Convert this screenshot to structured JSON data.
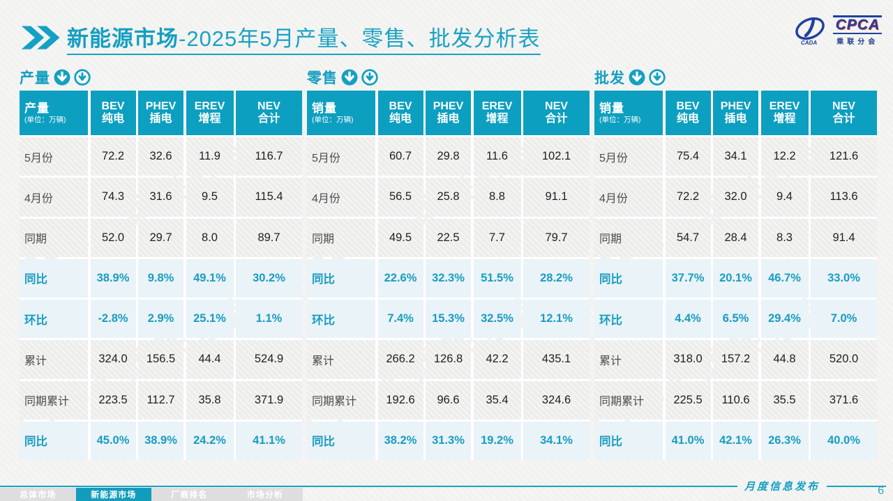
{
  "header": {
    "title_bold": "新能源市场",
    "title_rest": "-2025年5月产量、零售、批发分析表"
  },
  "logo": {
    "cpca": "CPCA",
    "sub": "乘联分会",
    "cada": "CADA"
  },
  "watermark": "CPCA 乘联分会",
  "tables": [
    {
      "section_label": "产量",
      "icon": "none",
      "first_header": "产量",
      "unit": "(单位：万辆)",
      "columns": [
        {
          "en": "BEV",
          "zh": "纯电"
        },
        {
          "en": "PHEV",
          "zh": "插电"
        },
        {
          "en": "EREV",
          "zh": "增程"
        },
        {
          "en": "NEV",
          "zh": "合计"
        }
      ],
      "rows": [
        {
          "label": "5月份",
          "type": "data",
          "values": [
            "72.2",
            "32.6",
            "11.9",
            "116.7"
          ]
        },
        {
          "label": "4月份",
          "type": "data",
          "values": [
            "74.3",
            "31.6",
            "9.5",
            "115.4"
          ]
        },
        {
          "label": "同期",
          "type": "data",
          "values": [
            "52.0",
            "29.7",
            "8.0",
            "89.7"
          ]
        },
        {
          "label": "同比",
          "type": "percent",
          "values": [
            "38.9%",
            "9.8%",
            "49.1%",
            "30.2%"
          ]
        },
        {
          "label": "环比",
          "type": "percent",
          "values": [
            "-2.8%",
            "2.9%",
            "25.1%",
            "1.1%"
          ]
        },
        {
          "label": "累计",
          "type": "data",
          "values": [
            "324.0",
            "156.5",
            "44.4",
            "524.9"
          ]
        },
        {
          "label": "同期累计",
          "type": "data",
          "values": [
            "223.5",
            "112.7",
            "35.8",
            "371.9"
          ]
        },
        {
          "label": "同比",
          "type": "percent",
          "values": [
            "45.0%",
            "38.9%",
            "24.2%",
            "41.1%"
          ]
        }
      ]
    },
    {
      "section_label": "零售",
      "icon": "filled-down",
      "first_header": "销量",
      "unit": "(单位：万辆)",
      "columns": [
        {
          "en": "BEV",
          "zh": "纯电"
        },
        {
          "en": "PHEV",
          "zh": "插电"
        },
        {
          "en": "EREV",
          "zh": "增程"
        },
        {
          "en": "NEV",
          "zh": "合计"
        }
      ],
      "rows": [
        {
          "label": "5月份",
          "type": "data",
          "values": [
            "60.7",
            "29.8",
            "11.6",
            "102.1"
          ]
        },
        {
          "label": "4月份",
          "type": "data",
          "values": [
            "56.5",
            "25.8",
            "8.8",
            "91.1"
          ]
        },
        {
          "label": "同期",
          "type": "data",
          "values": [
            "49.5",
            "22.5",
            "7.7",
            "79.7"
          ]
        },
        {
          "label": "同比",
          "type": "percent",
          "values": [
            "22.6%",
            "32.3%",
            "51.5%",
            "28.2%"
          ]
        },
        {
          "label": "环比",
          "type": "percent",
          "values": [
            "7.4%",
            "15.3%",
            "32.5%",
            "12.1%"
          ]
        },
        {
          "label": "累计",
          "type": "data",
          "values": [
            "266.2",
            "126.8",
            "42.2",
            "435.1"
          ]
        },
        {
          "label": "同期累计",
          "type": "data",
          "values": [
            "192.6",
            "96.6",
            "35.4",
            "324.6"
          ]
        },
        {
          "label": "同比",
          "type": "percent",
          "values": [
            "38.2%",
            "31.3%",
            "19.2%",
            "34.1%"
          ]
        }
      ]
    },
    {
      "section_label": "批发",
      "icon": "outline-down",
      "first_header": "销量",
      "unit": "(单位：万辆)",
      "columns": [
        {
          "en": "BEV",
          "zh": "纯电"
        },
        {
          "en": "PHEV",
          "zh": "插电"
        },
        {
          "en": "EREV",
          "zh": "增程"
        },
        {
          "en": "NEV",
          "zh": "合计"
        }
      ],
      "rows": [
        {
          "label": "5月份",
          "type": "data",
          "values": [
            "75.4",
            "34.1",
            "12.2",
            "121.6"
          ]
        },
        {
          "label": "4月份",
          "type": "data",
          "values": [
            "72.2",
            "32.0",
            "9.4",
            "113.6"
          ]
        },
        {
          "label": "同期",
          "type": "data",
          "values": [
            "54.7",
            "28.4",
            "8.3",
            "91.4"
          ]
        },
        {
          "label": "同比",
          "type": "percent",
          "values": [
            "37.7%",
            "20.1%",
            "46.7%",
            "33.0%"
          ]
        },
        {
          "label": "环比",
          "type": "percent",
          "values": [
            "4.4%",
            "6.5%",
            "29.4%",
            "7.0%"
          ]
        },
        {
          "label": "累计",
          "type": "data",
          "values": [
            "318.0",
            "157.2",
            "44.8",
            "520.0"
          ]
        },
        {
          "label": "同期累计",
          "type": "data",
          "values": [
            "225.5",
            "110.6",
            "35.5",
            "371.6"
          ]
        },
        {
          "label": "同比",
          "type": "percent",
          "values": [
            "41.0%",
            "42.1%",
            "26.3%",
            "40.0%"
          ]
        }
      ]
    }
  ],
  "footer": {
    "label": "月度信息发布",
    "page_number": "6"
  },
  "bottom_nav": {
    "items": [
      {
        "label": "总体市场",
        "active": false
      },
      {
        "label": "新能源市场",
        "active": true
      },
      {
        "label": "厂商排名",
        "active": false
      },
      {
        "label": "市场分析",
        "active": false
      }
    ]
  }
}
